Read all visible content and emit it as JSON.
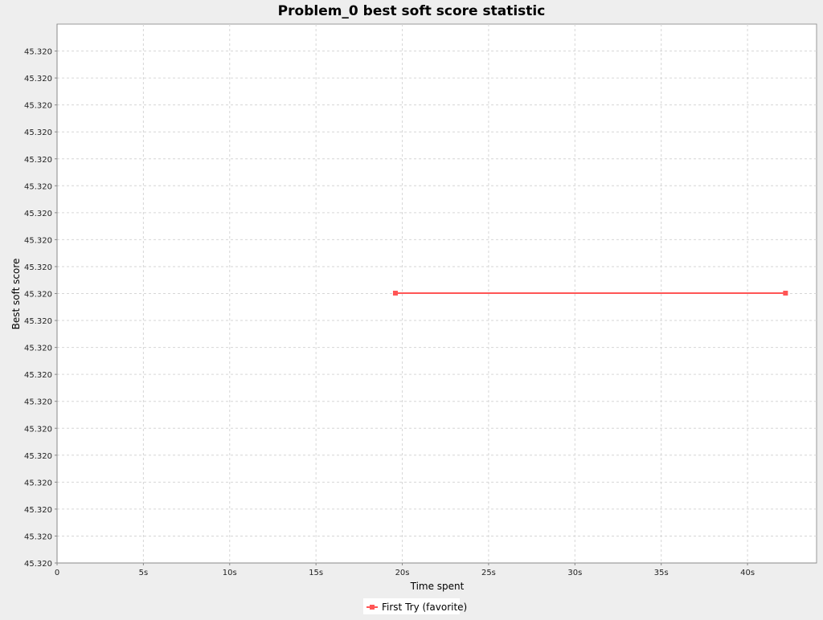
{
  "chart_data": {
    "type": "line",
    "title": "Problem_0 best soft score statistic",
    "xlabel": "Time spent",
    "ylabel": "Best soft score",
    "x_ticks": [
      "0",
      "5s",
      "10s",
      "15s",
      "20s",
      "25s",
      "30s",
      "35s",
      "40s"
    ],
    "x_tick_values": [
      0,
      5,
      10,
      15,
      20,
      25,
      30,
      35,
      40
    ],
    "xlim": [
      0,
      44
    ],
    "y_ticks": [
      "45.320",
      "45.320",
      "45.320",
      "45.320",
      "45.320",
      "45.320",
      "45.320",
      "45.320",
      "45.320",
      "45.320",
      "45.320",
      "45.320",
      "45.320",
      "45.320",
      "45.320",
      "45.320",
      "45.320",
      "45.320",
      "45.320",
      "45.320"
    ],
    "grid": true,
    "legend_position": "bottom",
    "series": [
      {
        "name": "First Try (favorite)",
        "color": "#ff5555",
        "x": [
          19.6,
          42.2
        ],
        "y": [
          45.32,
          45.32
        ]
      }
    ]
  }
}
